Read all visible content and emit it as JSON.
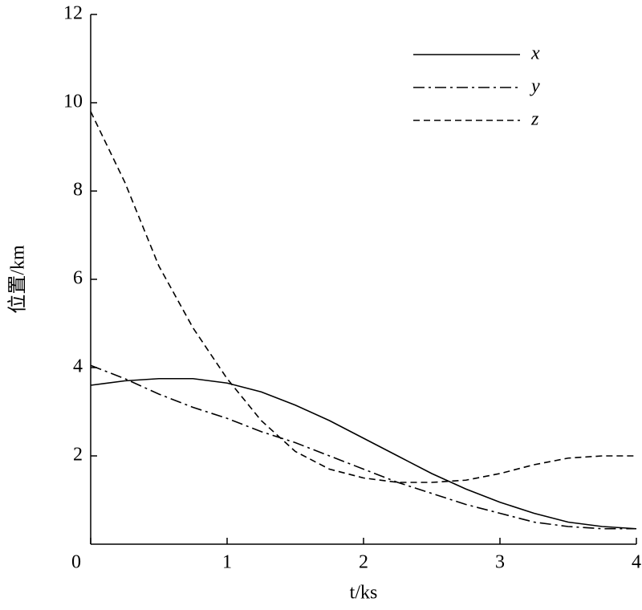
{
  "chart_data": {
    "type": "line",
    "xlabel": "t/ks",
    "ylabel": "位置/km",
    "x": [
      0,
      0.25,
      0.5,
      0.75,
      1,
      1.25,
      1.5,
      1.75,
      2,
      2.25,
      2.5,
      2.75,
      3,
      3.25,
      3.5,
      3.75,
      4
    ],
    "series": [
      {
        "name": "x",
        "color": "#000000",
        "style": "solid",
        "values": [
          3.6,
          3.7,
          3.75,
          3.75,
          3.65,
          3.45,
          3.15,
          2.8,
          2.4,
          2.0,
          1.6,
          1.25,
          0.95,
          0.7,
          0.5,
          0.4,
          0.35
        ]
      },
      {
        "name": "y",
        "color": "#000000",
        "style": "dashdot",
        "values": [
          4.05,
          3.75,
          3.4,
          3.1,
          2.85,
          2.55,
          2.3,
          2.0,
          1.7,
          1.4,
          1.15,
          0.9,
          0.7,
          0.5,
          0.4,
          0.35,
          0.35
        ]
      },
      {
        "name": "z",
        "color": "#000000",
        "style": "dashed",
        "values": [
          9.8,
          8.2,
          6.3,
          4.9,
          3.75,
          2.8,
          2.1,
          1.7,
          1.5,
          1.4,
          1.4,
          1.45,
          1.6,
          1.8,
          1.95,
          2.0,
          2.0
        ]
      }
    ],
    "xlim": [
      0,
      4
    ],
    "xticks": [
      0,
      1,
      2,
      3,
      4
    ],
    "ylim": [
      0,
      12
    ],
    "yticks": [
      2,
      4,
      6,
      8,
      10,
      12
    ],
    "legend": "upper right",
    "grid": false
  }
}
